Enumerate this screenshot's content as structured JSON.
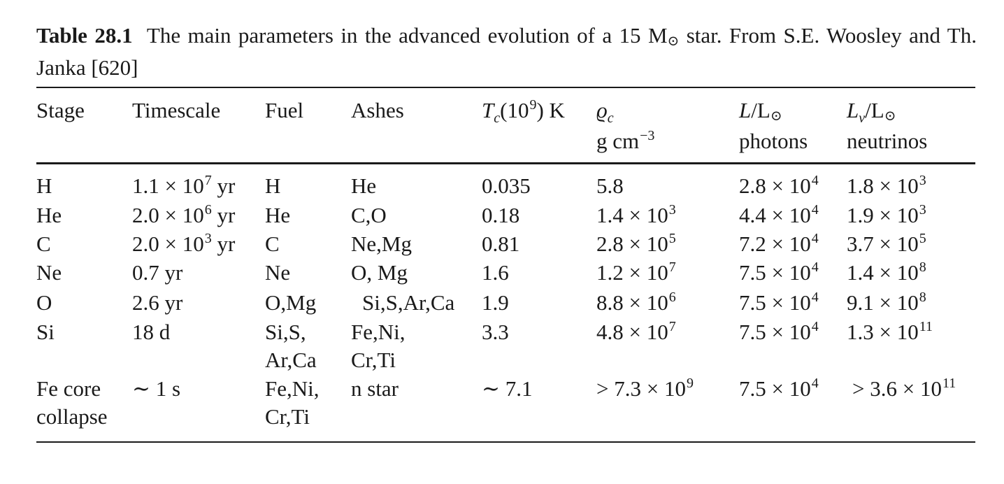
{
  "caption": {
    "label": "Table 28.1",
    "text_before": "The main parameters in the advanced evolution of a 15 M",
    "text_after": " star. From S.E. Woosley and Th. Janka [620]"
  },
  "headers": {
    "stage": "Stage",
    "timescale": "Timescale",
    "fuel": "Fuel",
    "ashes": "Ashes",
    "tc_sym": "T",
    "tc_sub": "c",
    "tc_unit_pre": "(10",
    "tc_exp": "9",
    "tc_unit_post": ") K",
    "rho_sym": "ϱ",
    "rho_sub": "c",
    "rho_unit": "g cm",
    "rho_exp": "−3",
    "lum_sym": "L",
    "lum_ratio": "/L",
    "lum_line2": "photons",
    "lnu_sym": "L",
    "lnu_sub": "ν",
    "lnu_ratio": "/L",
    "lnu_line2": "neutrinos"
  },
  "rows": [
    {
      "stage": "H",
      "ts_m": "1.1 × 10",
      "ts_e": "7",
      "ts_u": " yr",
      "fuel": "H",
      "ashes": "He",
      "tc": "0.035",
      "rho_m": "5.8",
      "rho_e": "",
      "l_m": "2.8 × 10",
      "l_e": "4",
      "ln_m": "1.8 × 10",
      "ln_e": "3"
    },
    {
      "stage": "He",
      "ts_m": "2.0 × 10",
      "ts_e": "6",
      "ts_u": " yr",
      "fuel": "He",
      "ashes": "C,O",
      "tc": "0.18",
      "rho_m": "1.4 × 10",
      "rho_e": "3",
      "l_m": "4.4 × 10",
      "l_e": "4",
      "ln_m": "1.9 × 10",
      "ln_e": "3"
    },
    {
      "stage": "C",
      "ts_m": "2.0 × 10",
      "ts_e": "3",
      "ts_u": " yr",
      "fuel": "C",
      "ashes": "Ne,Mg",
      "tc": "0.81",
      "rho_m": "2.8 × 10",
      "rho_e": "5",
      "l_m": "7.2 × 10",
      "l_e": "4",
      "ln_m": "3.7 × 10",
      "ln_e": "5"
    },
    {
      "stage": "Ne",
      "ts_m": "0.7 yr",
      "ts_e": "",
      "ts_u": "",
      "fuel": "Ne",
      "ashes": "O, Mg",
      "tc": "1.6",
      "rho_m": "1.2 × 10",
      "rho_e": "7",
      "l_m": "7.5 × 10",
      "l_e": "4",
      "ln_m": "1.4 × 10",
      "ln_e": "8"
    },
    {
      "stage": "O",
      "ts_m": "2.6 yr",
      "ts_e": "",
      "ts_u": "",
      "fuel": "O,Mg",
      "ashes": "Si,S,Ar,Ca",
      "tc": "1.9",
      "rho_m": "8.8 × 10",
      "rho_e": "6",
      "l_m": "7.5 × 10",
      "l_e": "4",
      "ln_m": "9.1 × 10",
      "ln_e": "8"
    },
    {
      "stage": "Si",
      "ts_m": "18 d",
      "ts_e": "",
      "ts_u": "",
      "fuel": "Si,S,",
      "fuel2": "Ar,Ca",
      "ashes": "Fe,Ni,",
      "ashes2": "Cr,Ti",
      "tc": "3.3",
      "rho_m": "4.8 × 10",
      "rho_e": "7",
      "l_m": "7.5 × 10",
      "l_e": "4",
      "ln_m": "1.3 × 10",
      "ln_e": "11"
    },
    {
      "stage": "Fe core",
      "stage2": "collapse",
      "ts_m": "∼ 1 s",
      "ts_e": "",
      "ts_u": "",
      "fuel": "Fe,Ni,",
      "fuel2": "Cr,Ti",
      "ashes": "n star",
      "tc": "∼ 7.1",
      "rho_m": "> 7.3 × 10",
      "rho_e": "9",
      "l_m": "7.5 × 10",
      "l_e": "4",
      "ln_m": "> 3.6 × 10",
      "ln_e": "11"
    }
  ]
}
